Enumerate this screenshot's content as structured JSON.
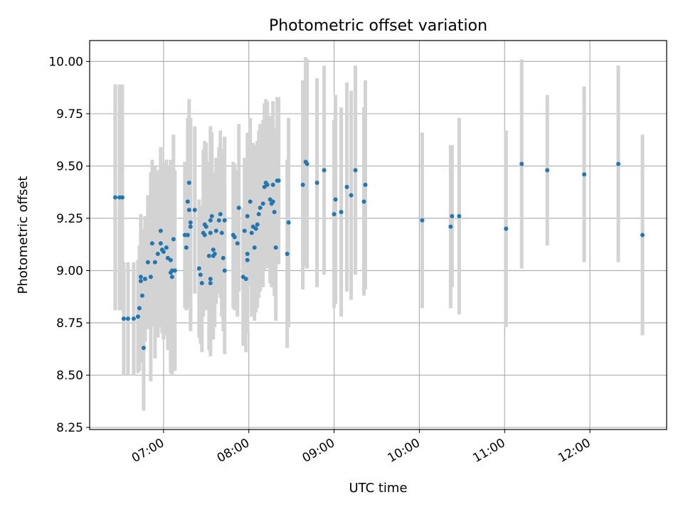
{
  "colors": {
    "point": "#1f77b4",
    "errorbar": "#d3d3d3",
    "grid": "#b0b0b0",
    "axis": "#000000"
  },
  "chart_data": {
    "type": "scatter",
    "title": "Photometric offset variation",
    "xlabel": "UTC time",
    "ylabel": "Photometric offset",
    "xlim": [
      "06:08",
      "12:54"
    ],
    "ylim": [
      8.24,
      10.1
    ],
    "grid": true,
    "x_ticks": [
      "07:00",
      "08:00",
      "09:00",
      "10:00",
      "11:00",
      "12:00"
    ],
    "y_ticks": [
      "8.25",
      "8.50",
      "8.75",
      "9.00",
      "9.25",
      "9.50",
      "9.75",
      "10.00"
    ],
    "points": [
      {
        "x": "06:26",
        "y": 9.35,
        "err": 0.54
      },
      {
        "x": "06:29",
        "y": 9.35,
        "err": 0.54
      },
      {
        "x": "06:31",
        "y": 9.35,
        "err": 0.54
      },
      {
        "x": "06:32",
        "y": 8.77,
        "err": 0.27
      },
      {
        "x": "06:35",
        "y": 8.77,
        "err": 0.27
      },
      {
        "x": "06:39",
        "y": 8.77,
        "err": 0.27
      },
      {
        "x": "06:42",
        "y": 8.78,
        "err": 0.27
      },
      {
        "x": "06:43",
        "y": 8.82,
        "err": 0.3
      },
      {
        "x": "06:44",
        "y": 8.97,
        "err": 0.3
      },
      {
        "x": "06:44",
        "y": 8.95,
        "err": 0.3
      },
      {
        "x": "06:45",
        "y": 8.88,
        "err": 0.32
      },
      {
        "x": "06:46",
        "y": 8.63,
        "err": 0.3
      },
      {
        "x": "06:47",
        "y": 8.96,
        "err": 0.3
      },
      {
        "x": "06:49",
        "y": 9.04,
        "err": 0.32
      },
      {
        "x": "06:51",
        "y": 8.97,
        "err": 0.5
      },
      {
        "x": "06:52",
        "y": 9.13,
        "err": 0.4
      },
      {
        "x": "06:54",
        "y": 9.04,
        "err": 0.46
      },
      {
        "x": "06:56",
        "y": 9.08,
        "err": 0.4
      },
      {
        "x": "06:58",
        "y": 9.19,
        "err": 0.4
      },
      {
        "x": "06:58",
        "y": 9.13,
        "err": 0.4
      },
      {
        "x": "06:59",
        "y": 9.1,
        "err": 0.4
      },
      {
        "x": "07:00",
        "y": 9.09,
        "err": 0.42
      },
      {
        "x": "07:02",
        "y": 9.11,
        "err": 0.42
      },
      {
        "x": "07:03",
        "y": 9.06,
        "err": 0.44
      },
      {
        "x": "07:05",
        "y": 9.05,
        "err": 0.48
      },
      {
        "x": "07:05",
        "y": 8.99,
        "err": 0.48
      },
      {
        "x": "07:06",
        "y": 9.0,
        "err": 0.5
      },
      {
        "x": "07:06",
        "y": 8.97,
        "err": 0.44
      },
      {
        "x": "07:07",
        "y": 9.15,
        "err": 0.5
      },
      {
        "x": "07:08",
        "y": 9.0,
        "err": 0.48
      },
      {
        "x": "07:15",
        "y": 9.17,
        "err": 0.35
      },
      {
        "x": "07:16",
        "y": 9.11,
        "err": 0.3
      },
      {
        "x": "07:17",
        "y": 9.17,
        "err": 0.35
      },
      {
        "x": "07:17",
        "y": 9.33,
        "err": 0.4
      },
      {
        "x": "07:18",
        "y": 9.29,
        "err": 0.4
      },
      {
        "x": "07:18",
        "y": 9.42,
        "err": 0.4
      },
      {
        "x": "07:19",
        "y": 9.23,
        "err": 0.5
      },
      {
        "x": "07:19",
        "y": 9.21,
        "err": 0.5
      },
      {
        "x": "07:22",
        "y": 9.29,
        "err": 0.4
      },
      {
        "x": "07:25",
        "y": 9.01,
        "err": 0.33
      },
      {
        "x": "07:26",
        "y": 8.98,
        "err": 0.33
      },
      {
        "x": "07:27",
        "y": 8.94,
        "err": 0.33
      },
      {
        "x": "07:28",
        "y": 9.18,
        "err": 0.4
      },
      {
        "x": "07:29",
        "y": 9.22,
        "err": 0.4
      },
      {
        "x": "07:29",
        "y": 9.17,
        "err": 0.35
      },
      {
        "x": "07:30",
        "y": 9.21,
        "err": 0.4
      },
      {
        "x": "07:32",
        "y": 9.07,
        "err": 0.45
      },
      {
        "x": "07:33",
        "y": 9.24,
        "err": 0.45
      },
      {
        "x": "07:33",
        "y": 8.94,
        "err": 0.35
      },
      {
        "x": "07:33",
        "y": 8.96,
        "err": 0.35
      },
      {
        "x": "07:33",
        "y": 9.18,
        "err": 0.35
      },
      {
        "x": "07:34",
        "y": 9.26,
        "err": 0.4
      },
      {
        "x": "07:35",
        "y": 9.07,
        "err": 0.4
      },
      {
        "x": "07:35",
        "y": 9.1,
        "err": 0.35
      },
      {
        "x": "07:36",
        "y": 9.08,
        "err": 0.35
      },
      {
        "x": "07:37",
        "y": 9.19,
        "err": 0.35
      },
      {
        "x": "07:39",
        "y": 9.24,
        "err": 0.35
      },
      {
        "x": "07:40",
        "y": 9.27,
        "err": 0.4
      },
      {
        "x": "07:41",
        "y": 9.18,
        "err": 0.4
      },
      {
        "x": "07:42",
        "y": 9.06,
        "err": 0.35
      },
      {
        "x": "07:43",
        "y": 9.24,
        "err": 0.4
      },
      {
        "x": "07:43",
        "y": 9.0,
        "err": 0.4
      },
      {
        "x": "07:49",
        "y": 9.17,
        "err": 0.35
      },
      {
        "x": "07:50",
        "y": 9.16,
        "err": 0.35
      },
      {
        "x": "07:52",
        "y": 9.13,
        "err": 0.35
      },
      {
        "x": "07:53",
        "y": 9.3,
        "err": 0.4
      },
      {
        "x": "07:56",
        "y": 8.97,
        "err": 0.33
      },
      {
        "x": "07:57",
        "y": 9.19,
        "err": 0.35
      },
      {
        "x": "07:58",
        "y": 8.96,
        "err": 0.35
      },
      {
        "x": "07:59",
        "y": 9.08,
        "err": 0.35
      },
      {
        "x": "07:59",
        "y": 9.26,
        "err": 0.4
      },
      {
        "x": "07:59",
        "y": 9.05,
        "err": 0.35
      },
      {
        "x": "08:01",
        "y": 9.33,
        "err": 0.4
      },
      {
        "x": "08:02",
        "y": 9.18,
        "err": 0.4
      },
      {
        "x": "08:03",
        "y": 9.21,
        "err": 0.4
      },
      {
        "x": "08:04",
        "y": 9.11,
        "err": 0.35
      },
      {
        "x": "08:05",
        "y": 9.2,
        "err": 0.4
      },
      {
        "x": "08:06",
        "y": 9.22,
        "err": 0.4
      },
      {
        "x": "08:07",
        "y": 9.27,
        "err": 0.4
      },
      {
        "x": "08:08",
        "y": 9.3,
        "err": 0.4
      },
      {
        "x": "08:10",
        "y": 9.32,
        "err": 0.4
      },
      {
        "x": "08:11",
        "y": 9.4,
        "err": 0.4
      },
      {
        "x": "08:12",
        "y": 9.42,
        "err": 0.4
      },
      {
        "x": "08:13",
        "y": 9.41,
        "err": 0.4
      },
      {
        "x": "08:15",
        "y": 9.34,
        "err": 0.4
      },
      {
        "x": "08:16",
        "y": 9.32,
        "err": 0.4
      },
      {
        "x": "08:17",
        "y": 9.41,
        "err": 0.4
      },
      {
        "x": "08:17",
        "y": 9.33,
        "err": 0.4
      },
      {
        "x": "08:18",
        "y": 9.28,
        "err": 0.4
      },
      {
        "x": "08:19",
        "y": 9.11,
        "err": 0.35
      },
      {
        "x": "08:20",
        "y": 9.43,
        "err": 0.4
      },
      {
        "x": "08:21",
        "y": 9.43,
        "err": 0.4
      },
      {
        "x": "08:27",
        "y": 9.08,
        "err": 0.45
      },
      {
        "x": "08:28",
        "y": 9.23,
        "err": 0.5
      },
      {
        "x": "08:38",
        "y": 9.41,
        "err": 0.5
      },
      {
        "x": "08:40",
        "y": 9.52,
        "err": 0.5
      },
      {
        "x": "08:41",
        "y": 9.51,
        "err": 0.5
      },
      {
        "x": "08:48",
        "y": 9.42,
        "err": 0.5
      },
      {
        "x": "08:53",
        "y": 9.48,
        "err": 0.5
      },
      {
        "x": "09:00",
        "y": 9.27,
        "err": 0.45
      },
      {
        "x": "09:01",
        "y": 9.34,
        "err": 0.5
      },
      {
        "x": "09:05",
        "y": 9.28,
        "err": 0.5
      },
      {
        "x": "09:09",
        "y": 9.4,
        "err": 0.5
      },
      {
        "x": "09:12",
        "y": 9.36,
        "err": 0.5
      },
      {
        "x": "09:15",
        "y": 9.48,
        "err": 0.5
      },
      {
        "x": "09:21",
        "y": 9.33,
        "err": 0.45
      },
      {
        "x": "09:22",
        "y": 9.41,
        "err": 0.5
      },
      {
        "x": "10:02",
        "y": 9.24,
        "err": 0.42
      },
      {
        "x": "10:22",
        "y": 9.21,
        "err": 0.39
      },
      {
        "x": "10:23",
        "y": 9.26,
        "err": 0.34
      },
      {
        "x": "10:28",
        "y": 9.26,
        "err": 0.47
      },
      {
        "x": "11:01",
        "y": 9.2,
        "err": 0.47
      },
      {
        "x": "11:12",
        "y": 9.51,
        "err": 0.5
      },
      {
        "x": "11:30",
        "y": 9.48,
        "err": 0.36
      },
      {
        "x": "11:56",
        "y": 9.46,
        "err": 0.42
      },
      {
        "x": "12:20",
        "y": 9.51,
        "err": 0.47
      },
      {
        "x": "12:37",
        "y": 9.17,
        "err": 0.48
      }
    ]
  }
}
